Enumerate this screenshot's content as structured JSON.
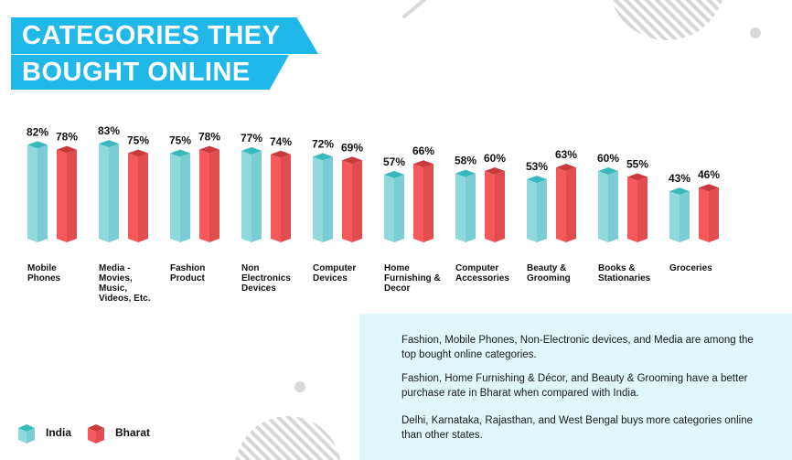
{
  "header": {
    "title_line1": "CATEGORIES THEY",
    "title_line2": "BOUGHT ONLINE"
  },
  "colors": {
    "india": "#8fd9dd",
    "bharat": "#f5595c",
    "title_bg": "#1fb8e8",
    "info_bg": "#dff6fb"
  },
  "chart_data": {
    "type": "bar",
    "title": "CATEGORIES THEY BOUGHT ONLINE",
    "categories": [
      [
        "Mobile",
        "Phones"
      ],
      [
        "Media -",
        "Movies,",
        "Music,",
        "Videos, Etc."
      ],
      [
        "Fashion",
        "Product"
      ],
      [
        "Non",
        "Electronics",
        "Devices"
      ],
      [
        "Computer",
        "Devices"
      ],
      [
        "Home",
        "Furnishing &",
        "Decor"
      ],
      [
        "Computer",
        "Accessories"
      ],
      [
        "Beauty &",
        "Grooming"
      ],
      [
        "Books &",
        "Stationaries"
      ],
      [
        "Groceries"
      ]
    ],
    "series": [
      {
        "name": "India",
        "values": [
          82,
          83,
          75,
          77,
          72,
          57,
          58,
          53,
          60,
          43
        ]
      },
      {
        "name": "Bharat",
        "values": [
          78,
          75,
          78,
          74,
          69,
          66,
          60,
          63,
          55,
          46
        ]
      }
    ],
    "value_suffix": "%",
    "legend_position": "bottom-left",
    "grid": false
  },
  "legend": {
    "india": "India",
    "bharat": "Bharat"
  },
  "insights": [
    "Fashion, Mobile Phones, Non-Electronic devices, and Media are among the top bought online categories.",
    "Fashion, Home Furnishing & Décor, and Beauty & Grooming have a better purchase rate in Bharat when compared with India.",
    "Delhi, Karnataka, Rajasthan, and West Bengal buys more categories online than other states."
  ]
}
